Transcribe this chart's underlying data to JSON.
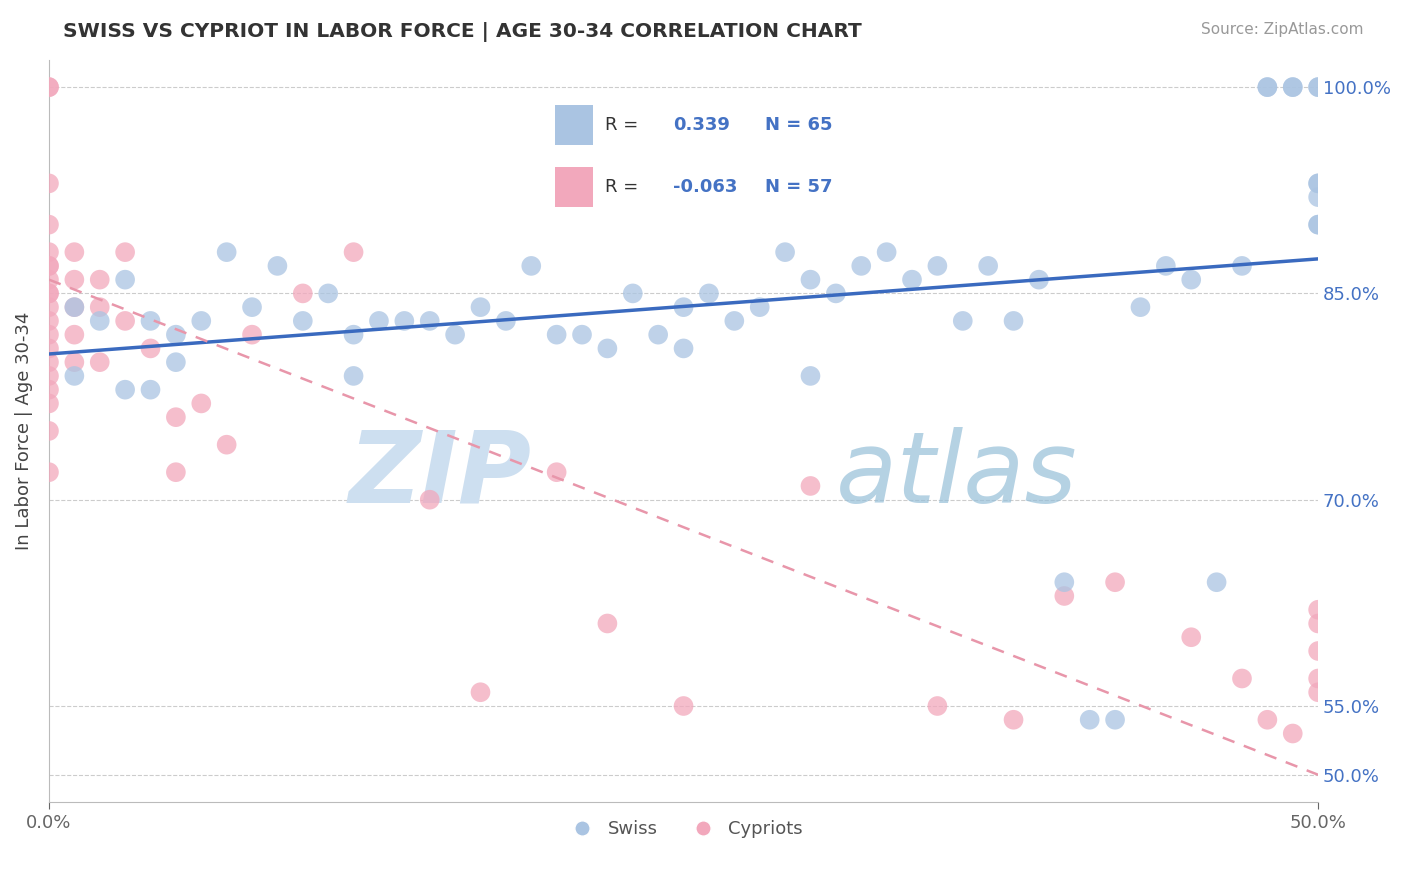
{
  "title": "SWISS VS CYPRIOT IN LABOR FORCE | AGE 30-34 CORRELATION CHART",
  "source": "Source: ZipAtlas.com",
  "ylabel": "In Labor Force | Age 30-34",
  "xlim": [
    0.0,
    0.5
  ],
  "ylim": [
    0.48,
    1.02
  ],
  "ytick_values": [
    0.5,
    0.55,
    0.7,
    0.85,
    1.0
  ],
  "ytick_labels": [
    "50.0%",
    "55.0%",
    "70.0%",
    "85.0%",
    "100.0%"
  ],
  "xtick_values": [
    0.0,
    0.5
  ],
  "xtick_labels": [
    "0.0%",
    "50.0%"
  ],
  "swiss_R": 0.339,
  "swiss_N": 65,
  "cypriot_R": -0.063,
  "cypriot_N": 57,
  "swiss_color": "#aac4e2",
  "cypriot_color": "#f2a8bc",
  "swiss_line_color": "#3a6abf",
  "cypriot_line_color": "#e896aa",
  "swiss_x": [
    0.01,
    0.01,
    0.02,
    0.03,
    0.04,
    0.05,
    0.06,
    0.07,
    0.08,
    0.09,
    0.1,
    0.11,
    0.12,
    0.13,
    0.14,
    0.15,
    0.16,
    0.17,
    0.18,
    0.19,
    0.2,
    0.21,
    0.22,
    0.23,
    0.24,
    0.25,
    0.26,
    0.27,
    0.28,
    0.29,
    0.3,
    0.31,
    0.32,
    0.33,
    0.34,
    0.35,
    0.36,
    0.37,
    0.38,
    0.39,
    0.4,
    0.41,
    0.42,
    0.43,
    0.44,
    0.45,
    0.46,
    0.47,
    0.48,
    0.48,
    0.49,
    0.49,
    0.5,
    0.5,
    0.5,
    0.5,
    0.5,
    0.5,
    0.5,
    0.03,
    0.04,
    0.05,
    0.12,
    0.25,
    0.3
  ],
  "swiss_y": [
    0.84,
    0.79,
    0.83,
    0.86,
    0.83,
    0.82,
    0.83,
    0.88,
    0.84,
    0.87,
    0.83,
    0.85,
    0.82,
    0.83,
    0.83,
    0.83,
    0.82,
    0.84,
    0.83,
    0.87,
    0.82,
    0.82,
    0.81,
    0.85,
    0.82,
    0.84,
    0.85,
    0.83,
    0.84,
    0.88,
    0.86,
    0.85,
    0.87,
    0.88,
    0.86,
    0.87,
    0.83,
    0.87,
    0.83,
    0.86,
    0.64,
    0.54,
    0.54,
    0.84,
    0.87,
    0.86,
    0.64,
    0.87,
    1.0,
    1.0,
    1.0,
    1.0,
    1.0,
    0.9,
    0.93,
    0.93,
    1.0,
    0.9,
    0.92,
    0.78,
    0.78,
    0.8,
    0.79,
    0.81,
    0.79
  ],
  "cypriot_x": [
    0.0,
    0.0,
    0.0,
    0.0,
    0.0,
    0.0,
    0.0,
    0.0,
    0.0,
    0.0,
    0.0,
    0.0,
    0.0,
    0.0,
    0.0,
    0.0,
    0.0,
    0.0,
    0.0,
    0.0,
    0.01,
    0.01,
    0.01,
    0.01,
    0.01,
    0.02,
    0.02,
    0.02,
    0.03,
    0.03,
    0.04,
    0.05,
    0.05,
    0.06,
    0.07,
    0.08,
    0.1,
    0.12,
    0.15,
    0.17,
    0.2,
    0.22,
    0.25,
    0.3,
    0.35,
    0.38,
    0.4,
    0.42,
    0.45,
    0.47,
    0.48,
    0.49,
    0.5,
    0.5,
    0.5,
    0.5,
    0.5
  ],
  "cypriot_y": [
    1.0,
    1.0,
    0.93,
    0.9,
    0.88,
    0.87,
    0.87,
    0.86,
    0.85,
    0.85,
    0.84,
    0.83,
    0.82,
    0.81,
    0.8,
    0.79,
    0.78,
    0.77,
    0.75,
    0.72,
    0.88,
    0.86,
    0.84,
    0.82,
    0.8,
    0.86,
    0.84,
    0.8,
    0.88,
    0.83,
    0.81,
    0.76,
    0.72,
    0.77,
    0.74,
    0.82,
    0.85,
    0.88,
    0.7,
    0.56,
    0.72,
    0.61,
    0.55,
    0.71,
    0.55,
    0.54,
    0.63,
    0.64,
    0.6,
    0.57,
    0.54,
    0.53,
    0.56,
    0.57,
    0.59,
    0.61,
    0.62
  ],
  "watermark_zip_color": "#cddff0",
  "watermark_atlas_color": "#96bfd8"
}
